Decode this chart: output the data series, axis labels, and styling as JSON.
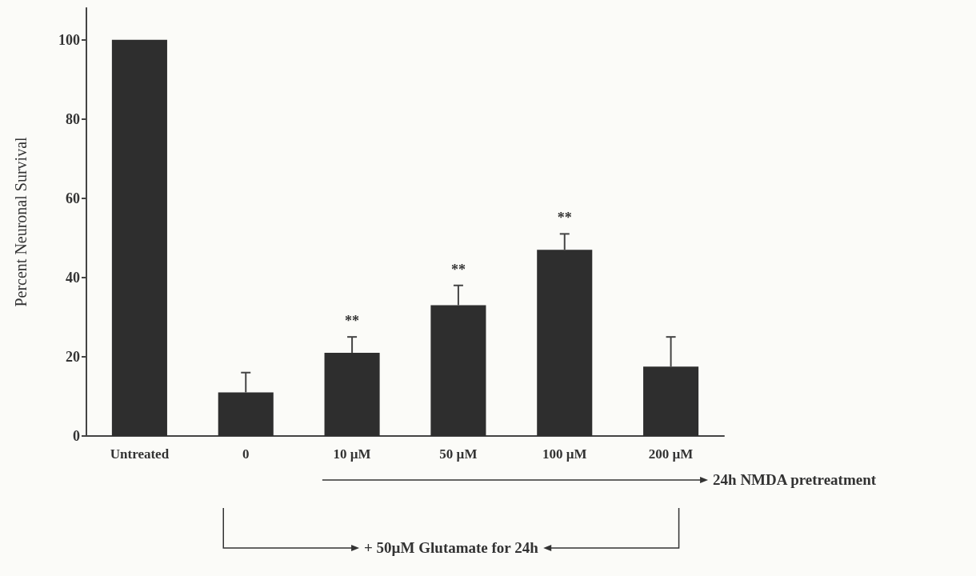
{
  "chart_data": {
    "type": "bar",
    "ylabel": "Percent Neuronal Survival",
    "categories": [
      "Untreated",
      "0",
      "10 µM",
      "50 µM",
      "100 µM",
      "200 µM"
    ],
    "values": [
      100,
      11,
      21,
      33,
      47,
      17.5
    ],
    "errors": [
      null,
      [
        11,
        16
      ],
      [
        21,
        25
      ],
      [
        33,
        38
      ],
      [
        47,
        51
      ],
      [
        17.5,
        25
      ]
    ],
    "color": "#2e2e2e",
    "ylim": [
      0,
      108
    ],
    "yticks": [
      0,
      20,
      40,
      60,
      80,
      100
    ],
    "grid": false,
    "annotations": [
      {
        "text": "**",
        "x": "10 µM",
        "y": 25
      },
      {
        "text": "**",
        "x": "50 µM",
        "y": 38
      },
      {
        "text": "**",
        "x": "100 µM",
        "y": 51
      },
      "24h NMDA pretreatment",
      "+ 50µM Glutamate for 24h"
    ]
  }
}
